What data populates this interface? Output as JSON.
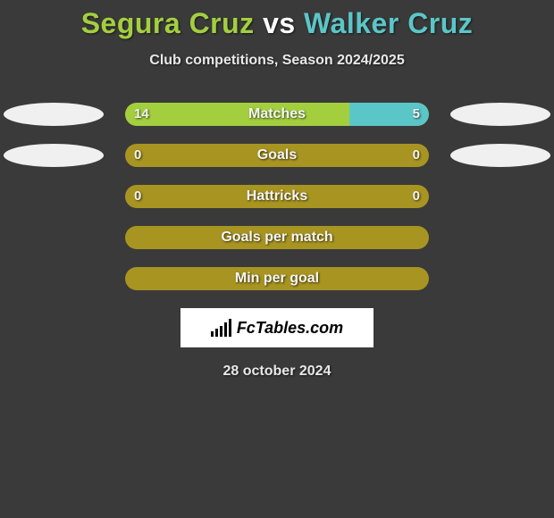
{
  "title": {
    "player1": "Segura Cruz",
    "vs": "vs",
    "player2": "Walker Cruz",
    "player1_color": "#a3cf3f",
    "vs_color": "#ffffff",
    "player2_color": "#5bc6c8",
    "fontsize": 32
  },
  "subtitle": {
    "text": "Club competitions, Season 2024/2025",
    "fontsize": 16,
    "color": "#e8e8e8"
  },
  "chart": {
    "track_width": 340,
    "track_height": 26,
    "track_radius": 13,
    "track_color": "#a89421",
    "left_color": "#a3cf3f",
    "right_color": "#5bc6c8",
    "label_color": "#f5f5f5",
    "value_color": "#f2f2f2",
    "ellipse_color": "#f0f0f0",
    "rows": [
      {
        "label": "Matches",
        "left": "14",
        "right": "5",
        "left_pct": 73.7,
        "right_pct": 26.3,
        "show_left_ellipse": true,
        "show_right_ellipse": true
      },
      {
        "label": "Goals",
        "left": "0",
        "right": "0",
        "left_pct": 0,
        "right_pct": 0,
        "show_left_ellipse": true,
        "show_right_ellipse": true
      },
      {
        "label": "Hattricks",
        "left": "0",
        "right": "0",
        "left_pct": 0,
        "right_pct": 0,
        "show_left_ellipse": false,
        "show_right_ellipse": false
      },
      {
        "label": "Goals per match",
        "left": "",
        "right": "",
        "left_pct": 0,
        "right_pct": 0,
        "show_left_ellipse": false,
        "show_right_ellipse": false
      },
      {
        "label": "Min per goal",
        "left": "",
        "right": "",
        "left_pct": 0,
        "right_pct": 0,
        "show_left_ellipse": false,
        "show_right_ellipse": false
      }
    ]
  },
  "logo": {
    "text": "FcTables.com",
    "box_bg": "#ffffff",
    "text_color": "#000000"
  },
  "date": {
    "text": "28 october 2024",
    "fontsize": 16,
    "color": "#e8e8e8"
  },
  "background_color": "#3a3a3a"
}
